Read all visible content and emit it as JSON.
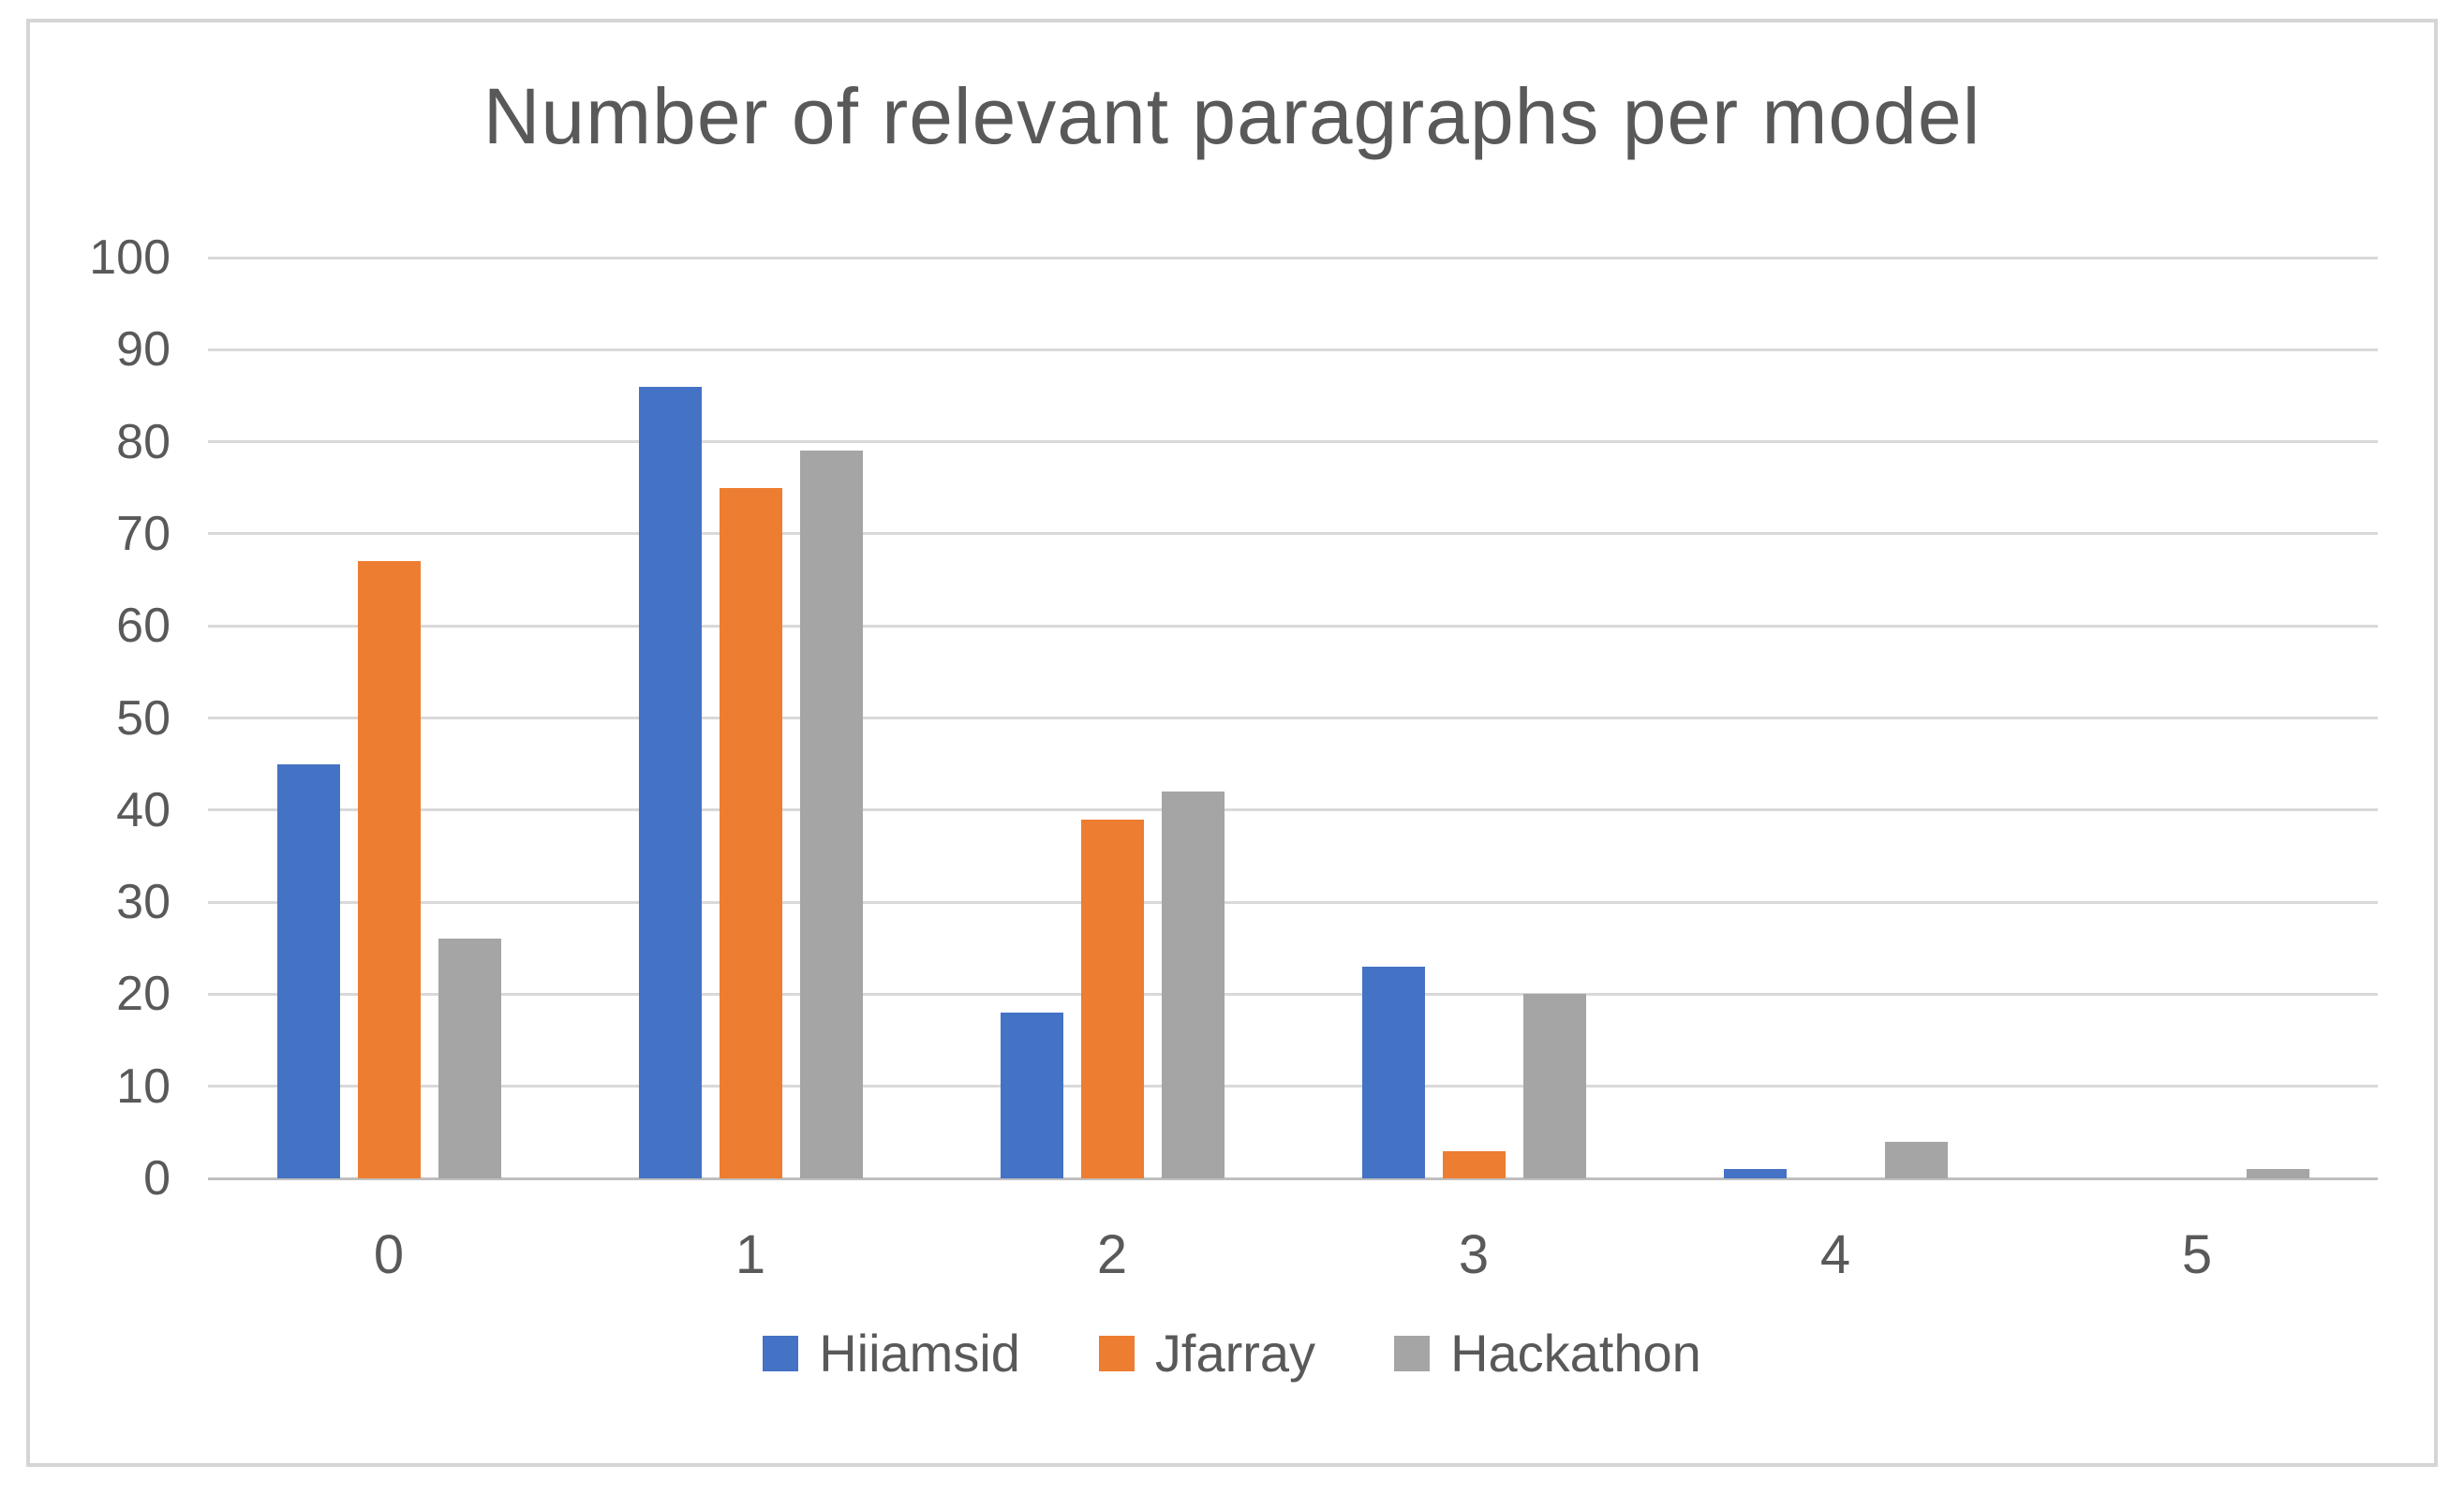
{
  "chart_data": {
    "type": "bar",
    "title": "Number of relevant paragraphs per model",
    "categories": [
      "0",
      "1",
      "2",
      "3",
      "4",
      "5"
    ],
    "series": [
      {
        "name": "Hiiamsid",
        "color": "#4472C4",
        "values": [
          45,
          86,
          18,
          23,
          1,
          0
        ]
      },
      {
        "name": "Jfarray",
        "color": "#ED7D31",
        "values": [
          67,
          75,
          39,
          3,
          0,
          0
        ]
      },
      {
        "name": "Hackathon",
        "color": "#A5A5A5",
        "values": [
          26,
          79,
          42,
          20,
          4,
          1
        ]
      }
    ],
    "xlabel": "",
    "ylabel": "",
    "ylim": [
      0,
      100
    ],
    "y_tick_step": 10,
    "y_tick_labels": [
      "0",
      "10",
      "20",
      "30",
      "40",
      "50",
      "60",
      "70",
      "80",
      "90",
      "100"
    ],
    "grid": true,
    "legend_position": "bottom"
  },
  "style": {
    "text_color": "#595959",
    "gridline_color": "#D9D9D9",
    "axis_line_color": "#BFBFBF",
    "frame_border_color": "#D5D5D5",
    "background_color": "#FFFFFF"
  }
}
